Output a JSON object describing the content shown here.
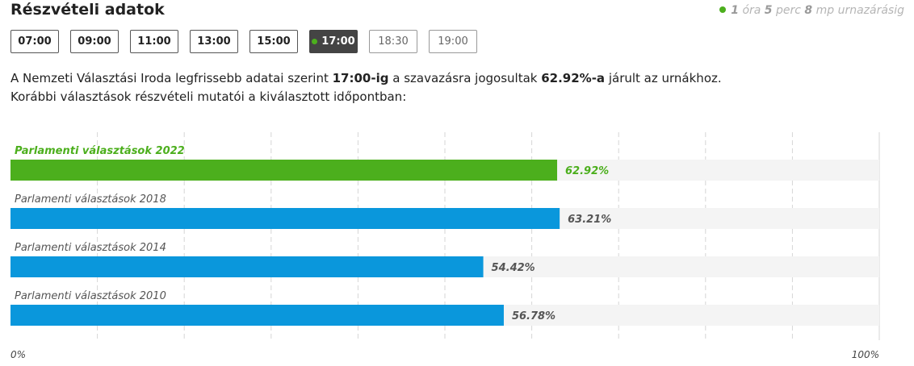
{
  "header": {
    "title": "Részvételi adatok"
  },
  "countdown": {
    "hours": "1",
    "hours_unit": "óra",
    "minutes": "5",
    "minutes_unit": "perc",
    "seconds": "8",
    "seconds_unit": "mp urnazárásig",
    "dot_color": "#4caf1d"
  },
  "time_buttons": [
    {
      "label": "07:00",
      "state": "past"
    },
    {
      "label": "09:00",
      "state": "past"
    },
    {
      "label": "11:00",
      "state": "past"
    },
    {
      "label": "13:00",
      "state": "past"
    },
    {
      "label": "15:00",
      "state": "past"
    },
    {
      "label": "17:00",
      "state": "active"
    },
    {
      "label": "18:30",
      "state": "future"
    },
    {
      "label": "19:00",
      "state": "future"
    }
  ],
  "description": {
    "part1": "A Nemzeti Választási Iroda legfrissebb adatai szerint ",
    "time": "17:00-ig",
    "part2": " a szavazásra jogosultak ",
    "percent": "62.92%-a",
    "part3": " járult az urnákhoz.",
    "line2": "Korábbi választások részvételi mutatói a kiválasztott időpontban:"
  },
  "colors": {
    "current": "#4caf1d",
    "previous": "#0a97dc",
    "track": "#f4f4f4"
  },
  "chart_data": {
    "type": "bar",
    "orientation": "horizontal",
    "categories": [
      "Parlamenti választások 2022",
      "Parlamenti választások 2018",
      "Parlamenti választások 2014",
      "Parlamenti választások 2010"
    ],
    "values": [
      62.92,
      63.21,
      54.42,
      56.78
    ],
    "value_labels": [
      "62.92%",
      "63.21%",
      "54.42%",
      "56.78%"
    ],
    "highlight_index": 0,
    "xlim": [
      0,
      100
    ],
    "x_tick_labels": [
      "0%",
      "100%"
    ],
    "grid": "vertical-dashed"
  }
}
